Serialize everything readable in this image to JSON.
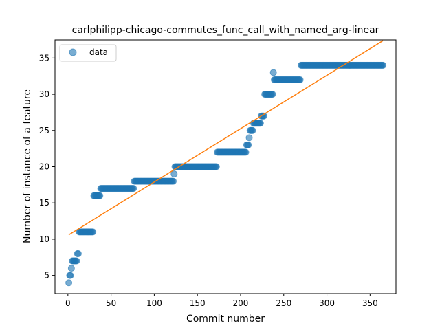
{
  "chart_data": {
    "type": "scatter",
    "title": "carlphilipp-chicago-commutes_func_call_with_named_arg-linear",
    "xlabel": "Commit number",
    "ylabel": "Number of instance of a feature",
    "xlim": [
      -15,
      380
    ],
    "ylim": [
      2.5,
      37.5
    ],
    "xticks": [
      0,
      50,
      100,
      150,
      200,
      250,
      300,
      350
    ],
    "yticks": [
      5,
      10,
      15,
      20,
      25,
      30,
      35
    ],
    "legend": {
      "position": "top-left",
      "entries": [
        "data"
      ]
    },
    "grid": false,
    "colors": {
      "points": "#1f77b4",
      "fit": "#ff7f0e"
    },
    "data_segments": [
      {
        "from": 1,
        "to": 1,
        "y": 4
      },
      {
        "from": 2,
        "to": 3,
        "y": 5
      },
      {
        "from": 4,
        "to": 4,
        "y": 6
      },
      {
        "from": 5,
        "to": 10,
        "y": 7
      },
      {
        "from": 11,
        "to": 12,
        "y": 8
      },
      {
        "from": 13,
        "to": 29,
        "y": 11
      },
      {
        "from": 30,
        "to": 37,
        "y": 16
      },
      {
        "from": 38,
        "to": 76,
        "y": 17
      },
      {
        "from": 77,
        "to": 122,
        "y": 18
      },
      {
        "from": 123,
        "to": 123,
        "y": 19
      },
      {
        "from": 124,
        "to": 172,
        "y": 20
      },
      {
        "from": 173,
        "to": 206,
        "y": 22
      },
      {
        "from": 207,
        "to": 209,
        "y": 23
      },
      {
        "from": 210,
        "to": 210,
        "y": 24
      },
      {
        "from": 211,
        "to": 214,
        "y": 25
      },
      {
        "from": 215,
        "to": 223,
        "y": 26
      },
      {
        "from": 224,
        "to": 227,
        "y": 27
      },
      {
        "from": 228,
        "to": 237,
        "y": 30
      },
      {
        "from": 238,
        "to": 238,
        "y": 33
      },
      {
        "from": 239,
        "to": 269,
        "y": 32
      },
      {
        "from": 270,
        "to": 365,
        "y": 34
      }
    ],
    "fit_line": {
      "x": [
        1,
        365
      ],
      "y": [
        10.6,
        37.4
      ]
    }
  }
}
